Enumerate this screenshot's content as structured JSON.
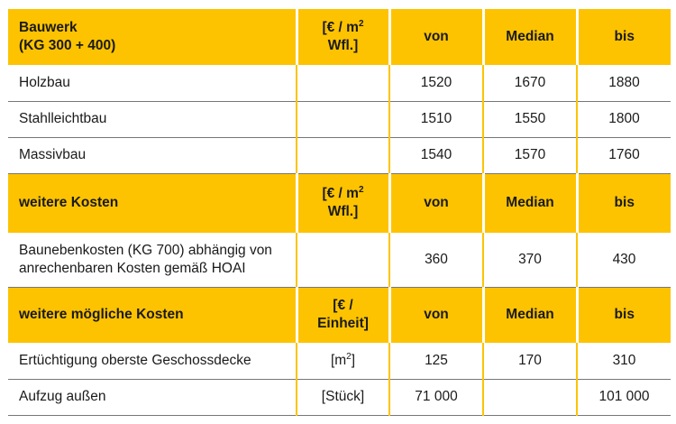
{
  "sections": [
    {
      "header": {
        "title_line1": "Bauwerk",
        "title_line2": "(KG 300 + 400)",
        "unit_line1": "[€ / m",
        "unit_sup": "2",
        "unit_line2": "Wfl.]",
        "von": "von",
        "median": "Median",
        "bis": "bis"
      },
      "rows": [
        {
          "label": "Holzbau",
          "unit": "",
          "von": "1520",
          "median": "1670",
          "bis": "1880"
        },
        {
          "label": "Stahlleichtbau",
          "unit": "",
          "von": "1510",
          "median": "1550",
          "bis": "1800"
        },
        {
          "label": "Massivbau",
          "unit": "",
          "von": "1540",
          "median": "1570",
          "bis": "1760"
        }
      ]
    },
    {
      "header": {
        "title_line1": "weitere Kosten",
        "unit_line1": "[€ / m",
        "unit_sup": "2",
        "unit_line2": "Wfl.]",
        "von": "von",
        "median": "Median",
        "bis": "bis"
      },
      "rows": [
        {
          "label_line1": "Baunebenkosten (KG 700) abhängig von",
          "label_line2": "anrechenbaren Kosten gemäß HOAI",
          "unit": "",
          "von": "360",
          "median": "370",
          "bis": "430"
        }
      ]
    },
    {
      "header": {
        "title_line1": "weitere mögliche Kosten",
        "unit_line1": "[€ /",
        "unit_line2": "Einheit]",
        "von": "von",
        "median": "Median",
        "bis": "bis"
      },
      "rows": [
        {
          "label": "Ertüchtigung oberste Geschossdecke",
          "unit": "[m",
          "unit_sup": "2",
          "unit_end": "]",
          "von": "125",
          "median": "170",
          "bis": "310"
        },
        {
          "label": "Aufzug außen",
          "unit": "[Stück]",
          "von": "71 000",
          "median": "",
          "bis": "101 000"
        }
      ]
    }
  ]
}
